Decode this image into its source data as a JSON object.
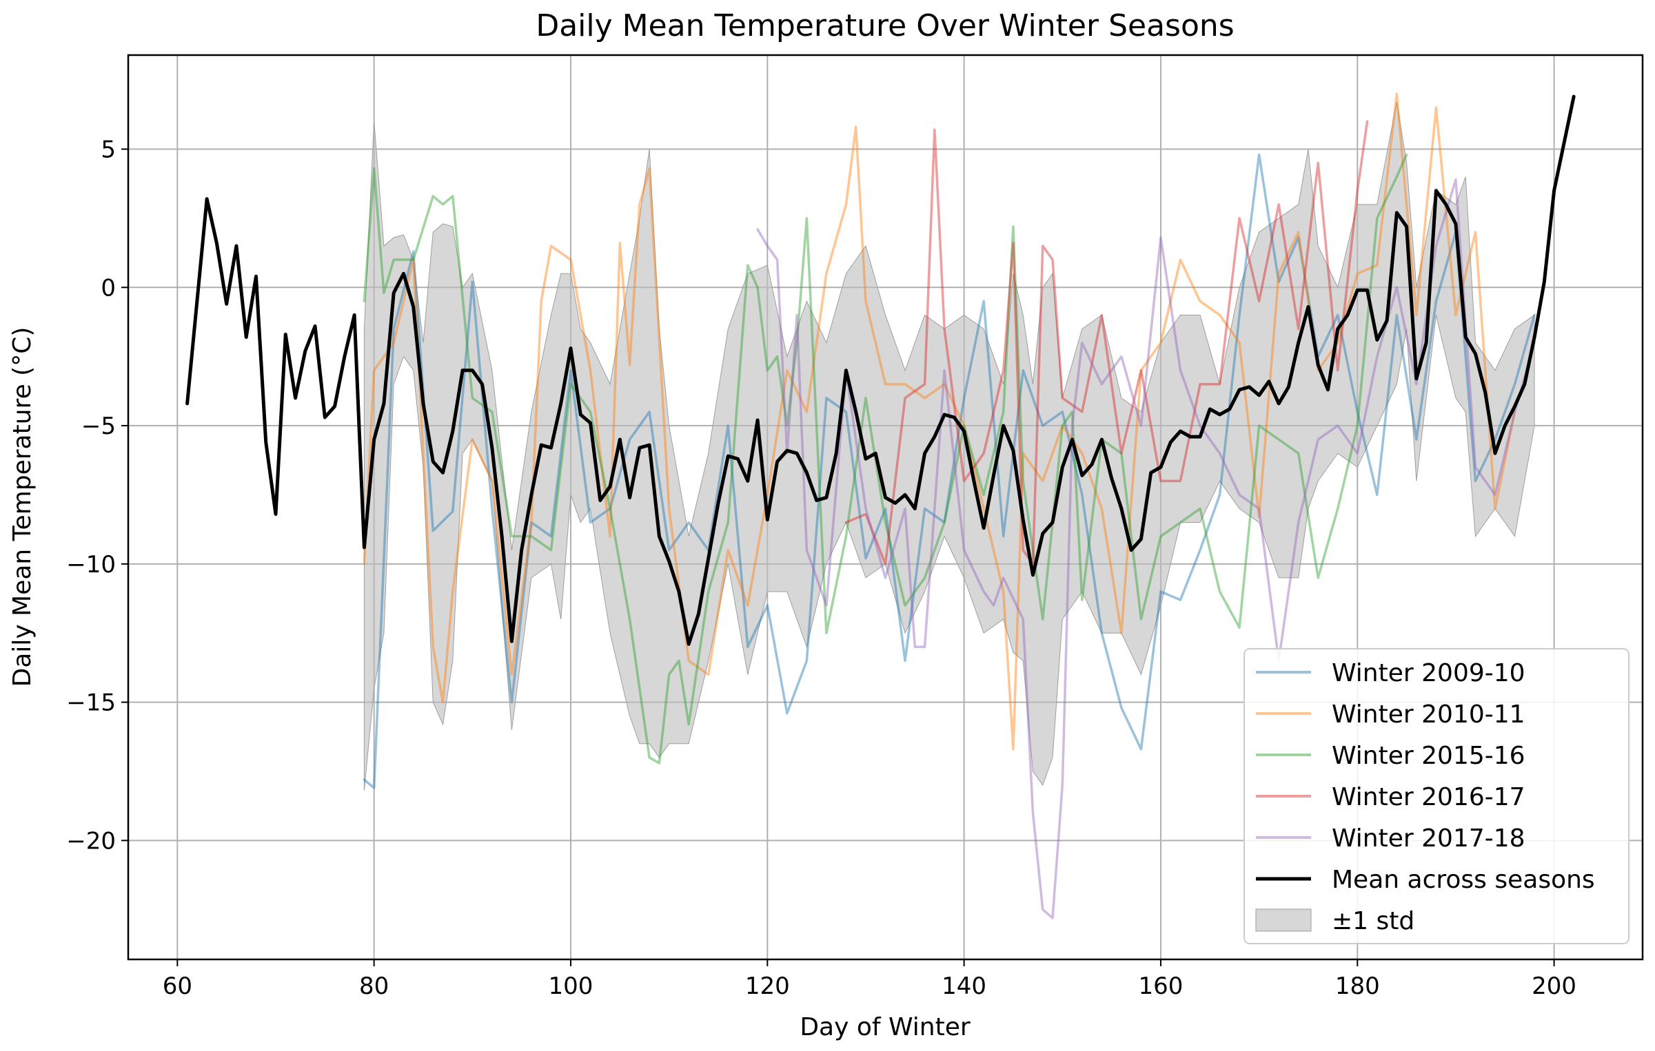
{
  "chart_data": {
    "type": "line",
    "title": "Daily Mean Temperature Over Winter Seasons",
    "xlabel": "Day of Winter",
    "ylabel": "Daily Mean Temperature (°C)",
    "xlim": [
      55,
      209
    ],
    "ylim": [
      -24.3,
      8.4
    ],
    "xticks": [
      60,
      80,
      100,
      120,
      140,
      160,
      180,
      200
    ],
    "yticks": [
      5,
      0,
      -5,
      -10,
      -15,
      -20
    ],
    "grid": true,
    "legend_position": "lower-right",
    "series": [
      {
        "name": "Winter 2009-10",
        "color": "#1f77b4",
        "x": [
          79,
          80,
          82,
          84,
          86,
          88,
          90,
          92,
          94,
          96,
          98,
          100,
          102,
          104,
          106,
          108,
          110,
          112,
          114,
          116,
          118,
          120,
          122,
          124,
          126,
          128,
          130,
          132,
          134,
          136,
          138,
          140,
          142,
          144,
          146,
          148,
          150,
          152,
          154,
          156,
          158,
          160,
          162,
          164,
          166,
          168,
          170,
          172,
          174,
          176,
          178,
          180,
          182,
          184,
          186,
          188,
          190,
          192,
          194,
          196,
          198
        ],
        "values": [
          -17.8,
          -18.1,
          -1.5,
          1.3,
          -8.8,
          -8.1,
          0.2,
          -8.0,
          -15.0,
          -8.5,
          -9.0,
          -3.0,
          -8.5,
          -8.0,
          -5.5,
          -4.5,
          -9.5,
          -8.5,
          -9.5,
          -5.0,
          -13.0,
          -11.5,
          -15.4,
          -13.5,
          -4.0,
          -4.5,
          -9.8,
          -8.0,
          -13.5,
          -8.0,
          -8.5,
          -4.0,
          -0.5,
          -9.0,
          -3.0,
          -5.0,
          -4.5,
          -7.5,
          -12.5,
          -15.2,
          -16.7,
          -11.0,
          -11.3,
          -9.5,
          -7.5,
          -1.0,
          4.8,
          0.2,
          1.8,
          -2.5,
          -1.0,
          -4.5,
          -7.5,
          -1.0,
          -5.5,
          -0.5,
          2.0,
          -7.0,
          -5.5,
          -3.5,
          -1.0
        ]
      },
      {
        "name": "Winter 2010-11",
        "color": "#ff7f0e",
        "x": [
          79,
          80,
          82,
          84,
          86,
          87,
          88,
          90,
          92,
          94,
          96,
          97,
          98,
          100,
          102,
          104,
          105,
          106,
          107,
          108,
          110,
          112,
          114,
          116,
          118,
          120,
          122,
          124,
          126,
          128,
          129,
          130,
          132,
          134,
          136,
          138,
          140,
          142,
          144,
          145,
          146,
          148,
          150,
          152,
          154,
          156,
          158,
          160,
          162,
          164,
          166,
          168,
          170,
          172,
          174,
          176,
          178,
          180,
          182,
          184,
          186,
          188,
          190,
          192,
          194,
          196
        ],
        "values": [
          -10.0,
          -3.0,
          -2.0,
          1.0,
          -13.0,
          -15.0,
          -11.0,
          -5.5,
          -7.0,
          -14.0,
          -8.5,
          -0.5,
          1.5,
          1.0,
          -3.0,
          -9.0,
          1.6,
          -2.8,
          3.0,
          4.3,
          -8.0,
          -13.5,
          -14.0,
          -9.5,
          -11.5,
          -7.5,
          -3.0,
          -4.5,
          0.5,
          3.0,
          5.8,
          -0.5,
          -3.5,
          -3.5,
          -4.0,
          -3.5,
          -5.0,
          -8.0,
          -11.0,
          -16.7,
          -6.0,
          -7.0,
          -5.0,
          -6.0,
          -8.0,
          -12.5,
          -3.0,
          -2.0,
          1.0,
          -0.5,
          -1.0,
          -2.0,
          -8.3,
          0.5,
          2.0,
          -3.0,
          -2.0,
          0.5,
          0.8,
          7.0,
          -1.0,
          6.5,
          -1.0,
          2.0,
          -8.0,
          -4.5
        ]
      },
      {
        "name": "Winter 2015-16",
        "color": "#2ca02c",
        "x": [
          79,
          80,
          81,
          82,
          84,
          86,
          87,
          88,
          90,
          92,
          94,
          96,
          98,
          100,
          102,
          104,
          106,
          108,
          109,
          110,
          111,
          112,
          114,
          116,
          118,
          119,
          120,
          121,
          122,
          123,
          124,
          126,
          128,
          130,
          132,
          134,
          136,
          138,
          140,
          142,
          144,
          145,
          146,
          148,
          150,
          151,
          152,
          154,
          156,
          158,
          160,
          162,
          164,
          166,
          168,
          170,
          172,
          174,
          176,
          178,
          180,
          182,
          184,
          185
        ],
        "values": [
          -0.5,
          4.3,
          -0.2,
          1.0,
          1.0,
          3.3,
          3.0,
          3.3,
          -4.0,
          -4.5,
          -9.0,
          -9.0,
          -9.5,
          -3.5,
          -4.5,
          -8.0,
          -12.0,
          -17.0,
          -17.2,
          -14.0,
          -13.5,
          -15.8,
          -11.0,
          -8.5,
          0.8,
          0.0,
          -3.0,
          -2.5,
          -5.0,
          -2.0,
          2.5,
          -12.5,
          -9.0,
          -4.0,
          -8.5,
          -11.5,
          -10.5,
          -8.5,
          -5.0,
          -7.5,
          -4.5,
          2.2,
          -7.0,
          -12.0,
          -5.0,
          -4.5,
          -11.3,
          -5.5,
          -6.0,
          -12.0,
          -9.0,
          -8.5,
          -8.0,
          -11.0,
          -12.3,
          -5.0,
          -5.5,
          -6.0,
          -10.5,
          -8.0,
          -5.0,
          2.5,
          4.0,
          4.8
        ]
      },
      {
        "name": "Winter 2016-17",
        "color": "#d62728",
        "x": [
          128,
          130,
          132,
          134,
          136,
          137,
          138,
          140,
          142,
          144,
          145,
          146,
          147,
          148,
          149,
          150,
          152,
          154,
          156,
          158,
          160,
          162,
          164,
          166,
          168,
          170,
          172,
          174,
          176,
          178,
          180,
          181
        ],
        "values": [
          -8.5,
          -8.2,
          -10.0,
          -4.0,
          -3.5,
          5.7,
          -1.5,
          -7.0,
          -6.0,
          -3.0,
          1.6,
          -9.5,
          -10.0,
          1.5,
          1.0,
          -4.0,
          -4.5,
          -1.0,
          -6.0,
          -3.0,
          -7.0,
          -7.0,
          -3.5,
          -3.5,
          2.5,
          -0.5,
          3.0,
          -1.5,
          4.5,
          -3.0,
          3.5,
          6.0
        ]
      },
      {
        "name": "Winter 2017-18",
        "color": "#9467bd",
        "x": [
          119,
          120,
          121,
          122,
          123,
          124,
          126,
          128,
          130,
          132,
          134,
          135,
          136,
          137,
          138,
          140,
          142,
          143,
          144,
          146,
          147,
          148,
          149,
          150,
          151,
          152,
          154,
          156,
          158,
          160,
          162,
          164,
          166,
          168,
          170,
          172,
          174,
          176,
          178,
          180,
          182,
          184,
          186,
          188,
          190,
          192,
          194,
          196,
          198
        ],
        "values": [
          2.1,
          1.5,
          1.0,
          -6.0,
          -1.0,
          -9.5,
          -11.5,
          -3.0,
          -8.0,
          -10.5,
          -8.0,
          -13.0,
          -13.0,
          -8.0,
          -3.0,
          -9.5,
          -11.0,
          -11.5,
          -10.5,
          -12.0,
          -19.0,
          -22.5,
          -22.8,
          -18.0,
          -5.0,
          -2.0,
          -3.5,
          -2.5,
          -5.0,
          1.8,
          -3.0,
          -5.0,
          -6.0,
          -7.5,
          -8.0,
          -13.5,
          -8.5,
          -5.5,
          -5.0,
          -6.0,
          -2.5,
          0.0,
          -3.5,
          1.5,
          3.9,
          -6.5,
          -7.5,
          -4.5,
          -2.0
        ]
      },
      {
        "name": "Mean across seasons",
        "color": "#000000",
        "x": [
          61,
          63,
          64,
          65,
          66,
          67,
          68,
          69,
          70,
          71,
          72,
          73,
          74,
          75,
          76,
          77,
          78,
          79,
          80,
          81,
          82,
          83,
          84,
          85,
          86,
          87,
          88,
          89,
          90,
          91,
          92,
          93,
          94,
          95,
          96,
          97,
          98,
          99,
          100,
          101,
          102,
          103,
          104,
          105,
          106,
          107,
          108,
          109,
          110,
          111,
          112,
          113,
          114,
          115,
          116,
          117,
          118,
          119,
          120,
          121,
          122,
          123,
          124,
          125,
          126,
          127,
          128,
          129,
          130,
          131,
          132,
          133,
          134,
          135,
          136,
          137,
          138,
          139,
          140,
          141,
          142,
          143,
          144,
          145,
          146,
          147,
          148,
          149,
          150,
          151,
          152,
          153,
          154,
          155,
          156,
          157,
          158,
          159,
          160,
          161,
          162,
          163,
          164,
          165,
          166,
          167,
          168,
          169,
          170,
          171,
          172,
          173,
          174,
          175,
          176,
          177,
          178,
          179,
          180,
          181,
          182,
          183,
          184,
          185,
          186,
          187,
          188,
          189,
          190,
          191,
          192,
          193,
          194,
          195,
          196,
          197,
          198,
          199,
          200,
          201,
          202
        ],
        "values": [
          -4.2,
          3.2,
          1.6,
          -0.6,
          1.5,
          -1.8,
          0.4,
          -5.6,
          -8.2,
          -1.7,
          -4.0,
          -2.3,
          -1.4,
          -4.7,
          -4.3,
          -2.5,
          -1.0,
          -9.4,
          -5.5,
          -4.2,
          -0.2,
          0.5,
          -0.7,
          -4.2,
          -6.3,
          -6.7,
          -5.2,
          -3.0,
          -3.0,
          -3.5,
          -5.8,
          -9.0,
          -12.8,
          -9.5,
          -7.5,
          -5.7,
          -5.8,
          -4.2,
          -2.2,
          -4.6,
          -4.9,
          -7.7,
          -7.2,
          -5.5,
          -7.6,
          -5.8,
          -5.7,
          -9.0,
          -9.9,
          -11.0,
          -12.9,
          -11.8,
          -9.8,
          -7.8,
          -6.1,
          -6.2,
          -7.0,
          -4.8,
          -8.4,
          -6.3,
          -5.9,
          -6.0,
          -6.7,
          -7.7,
          -7.6,
          -6.0,
          -3.0,
          -4.5,
          -6.2,
          -6.0,
          -7.6,
          -7.8,
          -7.5,
          -8.0,
          -6.0,
          -5.4,
          -4.6,
          -4.7,
          -5.2,
          -7.0,
          -8.7,
          -6.8,
          -5.0,
          -5.9,
          -8.4,
          -10.4,
          -8.9,
          -8.5,
          -6.5,
          -5.5,
          -6.8,
          -6.4,
          -5.5,
          -6.9,
          -8.0,
          -9.5,
          -9.1,
          -6.7,
          -6.5,
          -5.6,
          -5.2,
          -5.4,
          -5.4,
          -4.4,
          -4.6,
          -4.4,
          -3.7,
          -3.6,
          -3.9,
          -3.4,
          -4.2,
          -3.6,
          -2.0,
          -0.7,
          -2.8,
          -3.7,
          -1.5,
          -1.0,
          -0.1,
          -0.1,
          -1.9,
          -1.2,
          2.7,
          2.2,
          -3.3,
          -2.0,
          3.5,
          3.0,
          2.3,
          -1.8,
          -2.4,
          -3.8,
          -6.0,
          -5.0,
          -4.3,
          -3.5,
          -1.8,
          0.2,
          3.5,
          5.2,
          6.9
        ]
      }
    ],
    "std_band": {
      "name": "±1 std",
      "color": "#bdbdbd",
      "x": [
        79,
        80,
        81,
        82,
        83,
        84,
        85,
        86,
        87,
        88,
        89,
        90,
        92,
        94,
        96,
        98,
        99,
        100,
        101,
        102,
        104,
        106,
        107,
        108,
        109,
        110,
        112,
        114,
        116,
        118,
        120,
        122,
        124,
        126,
        128,
        130,
        132,
        134,
        136,
        138,
        140,
        142,
        144,
        145,
        146,
        147,
        148,
        149,
        150,
        152,
        154,
        156,
        158,
        160,
        162,
        164,
        166,
        168,
        170,
        172,
        174,
        175,
        176,
        178,
        180,
        182,
        184,
        185,
        186,
        188,
        190,
        191,
        192,
        194,
        196,
        198
      ],
      "upper": [
        -1.5,
        6.0,
        1.5,
        1.8,
        1.9,
        1.0,
        -2.0,
        2.0,
        2.3,
        2.2,
        0.0,
        0.5,
        -3.0,
        -9.5,
        -4.5,
        -1.0,
        0.5,
        0.5,
        -1.5,
        -2.0,
        -3.5,
        0.5,
        2.5,
        5.0,
        -1.5,
        -5.0,
        -9.0,
        -6.0,
        -1.5,
        0.5,
        0.8,
        -2.5,
        -0.5,
        -2.0,
        0.5,
        1.5,
        -1.0,
        -3.0,
        -1.0,
        -1.5,
        -1.0,
        -1.5,
        -3.5,
        0.5,
        -1.0,
        -3.5,
        0.0,
        0.5,
        -4.0,
        -1.5,
        -1.0,
        -4.0,
        -4.5,
        -2.0,
        -1.0,
        -1.0,
        -3.5,
        0.0,
        2.0,
        2.5,
        3.0,
        5.0,
        1.5,
        0.0,
        3.0,
        3.0,
        6.7,
        4.5,
        0.0,
        3.5,
        3.0,
        4.0,
        -2.0,
        -3.0,
        -1.5,
        -1.0
      ],
      "lower": [
        -18.2,
        -14.5,
        -12.5,
        -3.5,
        -2.5,
        -3.0,
        -6.5,
        -15.0,
        -15.8,
        -13.5,
        -6.0,
        -5.5,
        -7.0,
        -16.0,
        -10.5,
        -10.0,
        -12.0,
        -7.5,
        -8.5,
        -8.0,
        -12.5,
        -15.5,
        -16.5,
        -16.5,
        -17.0,
        -16.5,
        -16.5,
        -13.5,
        -10.0,
        -14.0,
        -11.0,
        -11.0,
        -13.0,
        -10.0,
        -8.5,
        -10.5,
        -10.0,
        -12.5,
        -11.0,
        -9.0,
        -10.5,
        -12.5,
        -12.0,
        -13.2,
        -13.5,
        -17.5,
        -18.0,
        -17.0,
        -12.0,
        -11.0,
        -12.5,
        -12.5,
        -14.0,
        -11.5,
        -8.5,
        -8.5,
        -7.0,
        -8.0,
        -8.5,
        -10.5,
        -10.5,
        -8.0,
        -7.0,
        -6.0,
        -6.5,
        -5.0,
        -3.5,
        -1.5,
        -7.0,
        -1.0,
        -4.0,
        -4.5,
        -9.0,
        -8.0,
        -9.0,
        -5.0
      ]
    }
  }
}
